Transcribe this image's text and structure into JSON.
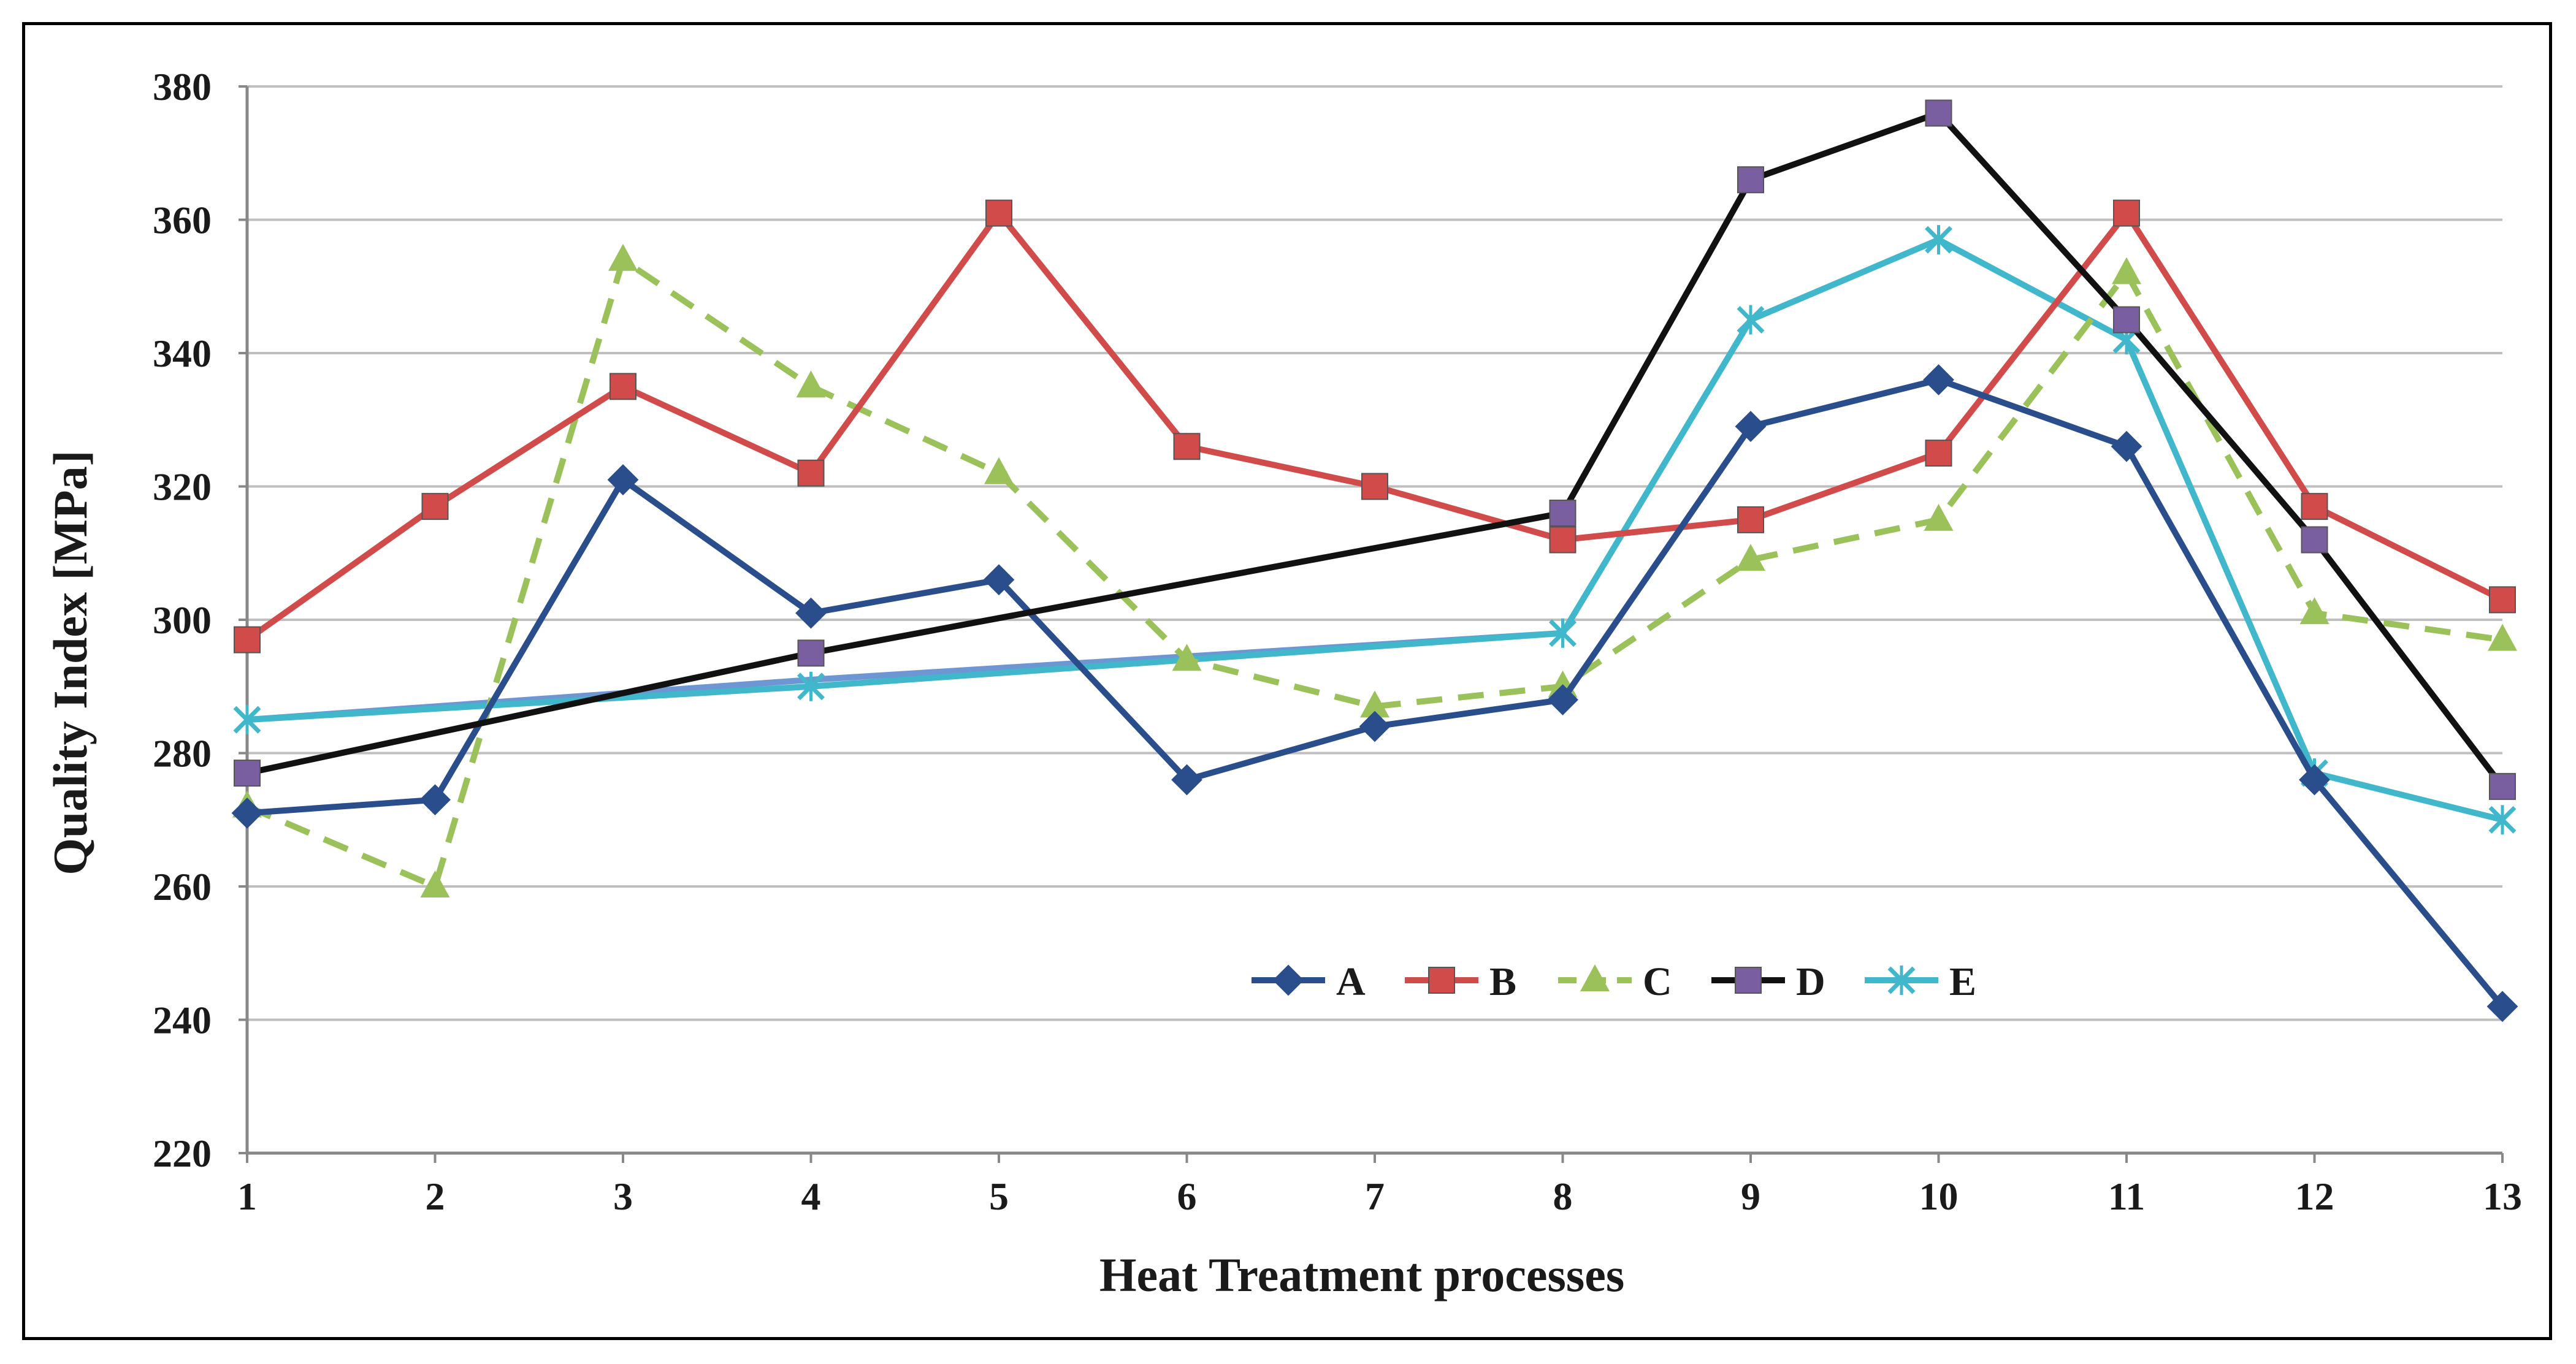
{
  "chart_data": {
    "type": "line",
    "title": "",
    "xlabel": "Heat Treatment processes",
    "ylabel": "Quality Index [MPa]",
    "categories": [
      "1",
      "2",
      "3",
      "4",
      "5",
      "6",
      "7",
      "8",
      "9",
      "10",
      "11",
      "12",
      "13"
    ],
    "yticks": [
      "220",
      "240",
      "260",
      "280",
      "300",
      "320",
      "340",
      "360",
      "380"
    ],
    "ylim": [
      220,
      380
    ],
    "grid": true,
    "legend_position": "bottom-center",
    "series": [
      {
        "name": "A",
        "color": "#2a4e8c",
        "marker": "diamond",
        "dashed": false,
        "x": [
          1,
          2,
          3,
          4,
          5,
          6,
          7,
          8,
          9,
          10,
          11,
          12,
          13
        ],
        "values": [
          271,
          273,
          321,
          301,
          306,
          276,
          284,
          288,
          329,
          336,
          326,
          276,
          242
        ]
      },
      {
        "name": "B",
        "color": "#d24b4b",
        "marker": "square",
        "dashed": false,
        "x": [
          1,
          2,
          3,
          4,
          5,
          6,
          7,
          8,
          9,
          10,
          11,
          12,
          13
        ],
        "values": [
          297,
          317,
          335,
          322,
          361,
          326,
          320,
          312,
          315,
          325,
          361,
          317,
          303
        ]
      },
      {
        "name": "C",
        "color": "#9bc25a",
        "marker": "triangle",
        "dashed": true,
        "x": [
          1,
          2,
          3,
          4,
          5,
          6,
          7,
          8,
          9,
          10,
          11,
          12,
          13
        ],
        "values": [
          272,
          260,
          354,
          335,
          322,
          294,
          287,
          290,
          309,
          315,
          352,
          301,
          297
        ]
      },
      {
        "name": "D",
        "color": "#111111",
        "marker": "square",
        "markerColor": "#7a5fa0",
        "dashed": false,
        "x": [
          1,
          4,
          8,
          9,
          10,
          11,
          12,
          13
        ],
        "values": [
          277,
          295,
          316,
          366,
          376,
          345,
          312,
          275
        ]
      },
      {
        "name": "E",
        "color": "#41b7cc",
        "marker": "x",
        "dashed": false,
        "x": [
          1,
          4,
          8,
          9,
          10,
          11,
          12,
          13
        ],
        "values": [
          285,
          290,
          298,
          345,
          357,
          342,
          277,
          270
        ]
      },
      {
        "name": "",
        "color": "#6d96d2",
        "marker": "none",
        "dashed": false,
        "legend": false,
        "x": [
          1,
          4,
          8
        ],
        "values": [
          285,
          291,
          298
        ]
      }
    ]
  }
}
